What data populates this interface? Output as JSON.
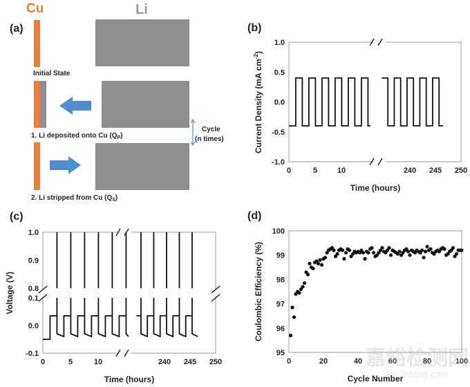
{
  "diagram": {
    "panel_label": "(a)",
    "cu_label": "Cu",
    "li_label": "Li",
    "initial_state": "Initial State",
    "step1_prefix": "1. Li deposited onto Cu (Q",
    "step1_sub": "P",
    "step1_suffix": ")",
    "step2_prefix": "2. Li stripped from Cu (Q",
    "step2_sub": "S",
    "step2_suffix": ")",
    "cycle_line1": "Cycle",
    "cycle_line2": "(n times)",
    "colors": {
      "cu": "#ee7d3a",
      "li": "#8f8f8f",
      "arrow": "#4f8fcf"
    }
  },
  "watermark": {
    "line1": "嘉峪检测网",
    "line2": "AnyTesting.com"
  },
  "chart_data": [
    {
      "panel_label": "(b)",
      "type": "line",
      "xlabel": "Time (hours)",
      "ylabel_prefix": "Current Density (mA cm",
      "ylabel_sup": "-2",
      "ylabel_suffix": ")",
      "xticks": [
        "0",
        "5",
        "10",
        "240",
        "245",
        "250"
      ],
      "xtick_values": [
        0,
        5,
        10,
        240,
        245,
        250
      ],
      "yticks": [
        "1.0",
        "0.5",
        "0.0",
        "-0.5",
        "-1.0"
      ],
      "ytick_values": [
        1.0,
        0.5,
        0.0,
        -0.5,
        -1.0
      ],
      "ylim": [
        -1.0,
        1.0
      ],
      "x_break": [
        16,
        234
      ],
      "square_wave": {
        "amplitude": 0.4,
        "half_period_hours": 1.25,
        "segments": [
          {
            "start": 0,
            "end": 15.5,
            "first_switch": 1.3,
            "start_value": -0.4
          },
          {
            "start": 234.5,
            "end": 246.5,
            "first_switch": 235.7,
            "start_value": 0.4
          }
        ]
      }
    },
    {
      "panel_label": "(c)",
      "type": "line",
      "xlabel": "Time (hours)",
      "ylabel": "Voltage (V)",
      "xticks": [
        "0",
        "5",
        "10",
        "240",
        "245",
        "250"
      ],
      "xtick_values": [
        0,
        5,
        10,
        240,
        245,
        250
      ],
      "yticks": [
        "1.0",
        "0.9",
        "0.8",
        "0.1",
        "0.0",
        "-0.1"
      ],
      "ytick_values": [
        1.0,
        0.9,
        0.8,
        0.1,
        0.0,
        -0.1
      ],
      "y_break": [
        0.1,
        0.8
      ],
      "x_break": [
        16,
        234
      ],
      "voltage_profile": {
        "initial_plating_v": -0.05,
        "plating_v_start": -0.03,
        "plating_v_end": -0.04,
        "stripping_v": 0.035,
        "cutoff_v": 1.0,
        "half_period_hours": 1.25,
        "segments": [
          {
            "start": 0,
            "end": 15.5,
            "first_switch": 1.3,
            "start_state": "plating"
          },
          {
            "start": 234.5,
            "end": 246.5,
            "first_switch": 235.4,
            "start_state": "stripping"
          }
        ]
      }
    },
    {
      "panel_label": "(d)",
      "type": "scatter",
      "xlabel": "Cycle Number",
      "ylabel": "Coulombic Efficiency (%)",
      "xlim": [
        0,
        100
      ],
      "ylim": [
        95,
        100
      ],
      "xticks": [
        "0",
        "20",
        "40",
        "60",
        "80",
        "100"
      ],
      "xtick_values": [
        0,
        20,
        40,
        60,
        80,
        100
      ],
      "yticks": [
        "100",
        "99",
        "98",
        "97",
        "96",
        "95"
      ],
      "ytick_values": [
        100,
        99,
        98,
        97,
        96,
        95
      ],
      "x": [
        1,
        2,
        3,
        4,
        5,
        6,
        7,
        8,
        9,
        10,
        11,
        12,
        13,
        14,
        15,
        16,
        17,
        18,
        19,
        20,
        21,
        22,
        23,
        24,
        25,
        26,
        27,
        28,
        29,
        30,
        31,
        32,
        33,
        34,
        35,
        36,
        37,
        38,
        39,
        40,
        41,
        42,
        43,
        44,
        45,
        46,
        47,
        48,
        49,
        50,
        51,
        52,
        53,
        54,
        55,
        56,
        57,
        58,
        59,
        60,
        61,
        62,
        63,
        64,
        65,
        66,
        67,
        68,
        69,
        70,
        71,
        72,
        73,
        74,
        75,
        76,
        77,
        78,
        79,
        80,
        81,
        82,
        83,
        84,
        85,
        86,
        87,
        88,
        89,
        90,
        91,
        92,
        93,
        94,
        95,
        96,
        97,
        98,
        99,
        100
      ],
      "y": [
        95.7,
        96.85,
        96.45,
        97.4,
        97.5,
        97.45,
        97.6,
        97.7,
        97.85,
        98.3,
        98.2,
        98.65,
        98.5,
        98.45,
        98.7,
        98.75,
        98.65,
        98.8,
        98.6,
        98.85,
        98.9,
        99.1,
        99.2,
        99.25,
        99.3,
        99.2,
        98.95,
        99.05,
        99.2,
        99.25,
        99.2,
        98.85,
        99.1,
        99.25,
        99.2,
        98.95,
        99.05,
        99.15,
        99.1,
        99.15,
        99.1,
        99.2,
        99.1,
        98.85,
        99.15,
        99.1,
        99.25,
        99.3,
        99.1,
        98.95,
        99.0,
        99.1,
        99.2,
        99.3,
        99.15,
        99.1,
        99.2,
        99.3,
        99.0,
        99.2,
        99.15,
        99.1,
        99.05,
        99.15,
        99.0,
        99.1,
        99.2,
        99.25,
        99.15,
        99.0,
        99.2,
        99.15,
        99.1,
        99.2,
        99.15,
        99.1,
        99.2,
        98.9,
        99.15,
        99.35,
        99.2,
        99.25,
        99.1,
        99.05,
        99.15,
        99.2,
        99.15,
        99.25,
        99.3,
        99.25,
        99.0,
        99.05,
        99.15,
        99.2,
        99.3,
        98.95,
        99.05,
        99.2,
        99.2,
        99.2
      ]
    }
  ]
}
